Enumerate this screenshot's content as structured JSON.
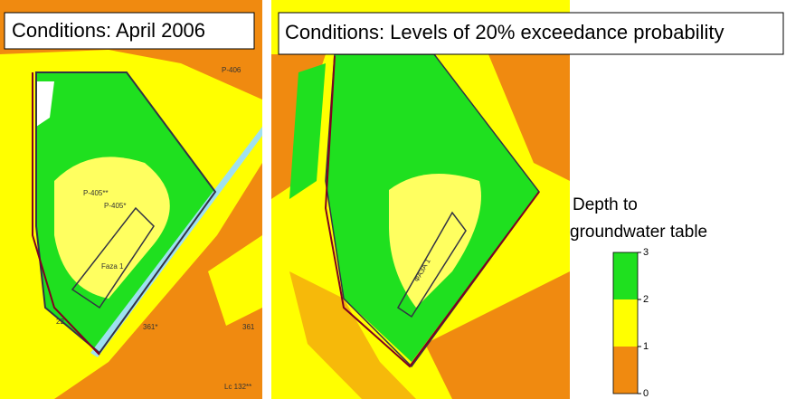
{
  "left_panel": {
    "title": "Conditions: April 2006",
    "labels": [
      "P-406",
      "P-405**",
      "P-405*",
      "Faza 1",
      "22",
      "361*",
      "361",
      "Lc 132**"
    ]
  },
  "right_panel": {
    "title": "Conditions: Levels of 20% exceedance probability",
    "labels": [
      "ФАЗА 1"
    ]
  },
  "legend": {
    "title_lines": [
      "Depth to",
      "groundwater table"
    ],
    "range": [
      0,
      3
    ],
    "ticks": [
      3,
      2,
      1,
      0
    ],
    "bands": [
      {
        "from": 2,
        "to": 3,
        "color": "#1fe01f"
      },
      {
        "from": 1,
        "to": 2,
        "color": "#ffff00"
      },
      {
        "from": 0,
        "to": 1,
        "color": "#f08a10"
      }
    ]
  }
}
